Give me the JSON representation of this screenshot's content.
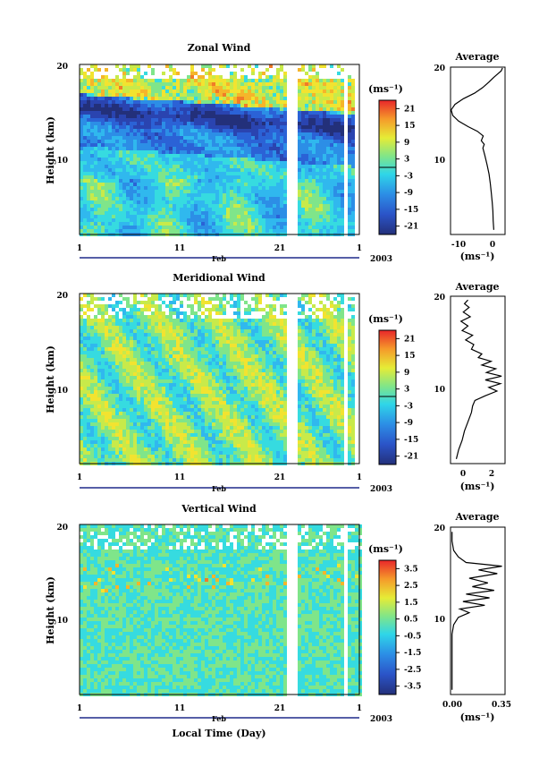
{
  "chart_data": [
    {
      "type": "heatmap",
      "title": "Zonal Wind",
      "ylabel": "Height (km)",
      "yticks": [
        "20",
        "10"
      ],
      "xticks": [
        "1",
        "11",
        "21",
        "1"
      ],
      "month_label": "Feb",
      "year_label": "2003",
      "colorbar_unit": "(ms⁻¹)",
      "colorbar_ticks": [
        "21",
        "15",
        "9",
        "3",
        "-3",
        "-9",
        "-15",
        "-21"
      ],
      "colorbar_range": [
        -24,
        24
      ],
      "average": {
        "title": "Average",
        "yticks": [
          "20",
          "10"
        ],
        "xticks": [
          "-10",
          "0"
        ],
        "unit": "(ms⁻¹)",
        "xlim": [
          -13,
          4
        ],
        "ylim": [
          2,
          20
        ],
        "profile": [
          [
            0.5,
            2.5
          ],
          [
            0.3,
            3.5
          ],
          [
            0.2,
            4.5
          ],
          [
            0.0,
            5.5
          ],
          [
            -0.3,
            6.5
          ],
          [
            -0.6,
            7.5
          ],
          [
            -1.0,
            8.5
          ],
          [
            -1.6,
            9.5
          ],
          [
            -2.3,
            10.5
          ],
          [
            -2.9,
            11.3
          ],
          [
            -2.5,
            11.7
          ],
          [
            -3.4,
            12.1
          ],
          [
            -2.8,
            12.6
          ],
          [
            -4.6,
            13.1
          ],
          [
            -7.5,
            13.6
          ],
          [
            -10.5,
            14.2
          ],
          [
            -12.3,
            14.8
          ],
          [
            -12.8,
            15.4
          ],
          [
            -11.6,
            16.0
          ],
          [
            -9.0,
            16.6
          ],
          [
            -5.5,
            17.2
          ],
          [
            -3.0,
            17.8
          ],
          [
            -1.0,
            18.4
          ],
          [
            0.5,
            18.9
          ],
          [
            1.8,
            19.3
          ],
          [
            2.8,
            19.6
          ],
          [
            3.2,
            19.9
          ]
        ]
      }
    },
    {
      "type": "heatmap",
      "title": "Meridional Wind",
      "ylabel": "Height (km)",
      "yticks": [
        "20",
        "10"
      ],
      "xticks": [
        "1",
        "11",
        "21",
        "1"
      ],
      "month_label": "Feb",
      "year_label": "2003",
      "colorbar_unit": "(ms⁻¹)",
      "colorbar_ticks": [
        "21",
        "15",
        "9",
        "3",
        "-3",
        "-9",
        "-15",
        "-21"
      ],
      "colorbar_range": [
        -24,
        24
      ],
      "average": {
        "title": "Average",
        "yticks": [
          "20",
          "10"
        ],
        "xticks": [
          "0",
          "2"
        ],
        "unit": "(ms⁻¹)",
        "xlim": [
          -1.5,
          3.2
        ],
        "ylim": [
          2,
          20
        ],
        "profile": [
          [
            -1.0,
            2.5
          ],
          [
            -0.8,
            3.5
          ],
          [
            -0.5,
            4.5
          ],
          [
            -0.3,
            5.5
          ],
          [
            0.0,
            6.5
          ],
          [
            0.3,
            7.5
          ],
          [
            0.4,
            8.2
          ],
          [
            0.6,
            8.8
          ],
          [
            1.5,
            9.3
          ],
          [
            2.5,
            9.8
          ],
          [
            1.8,
            10.2
          ],
          [
            2.8,
            10.6
          ],
          [
            1.5,
            11.0
          ],
          [
            2.9,
            11.4
          ],
          [
            1.6,
            11.8
          ],
          [
            2.4,
            12.2
          ],
          [
            1.2,
            12.6
          ],
          [
            2.0,
            13.0
          ],
          [
            0.9,
            13.4
          ],
          [
            1.2,
            13.8
          ],
          [
            0.3,
            14.3
          ],
          [
            0.5,
            14.8
          ],
          [
            -0.2,
            15.3
          ],
          [
            0.4,
            15.8
          ],
          [
            -0.5,
            16.3
          ],
          [
            0.0,
            16.8
          ],
          [
            -0.6,
            17.3
          ],
          [
            0.2,
            17.8
          ],
          [
            -0.4,
            18.3
          ],
          [
            0.1,
            18.8
          ],
          [
            -0.3,
            19.2
          ],
          [
            0.0,
            19.6
          ]
        ]
      }
    },
    {
      "type": "heatmap",
      "title": "Vertical Wind",
      "ylabel": "Height (km)",
      "xlabel": "Local Time (Day)",
      "yticks": [
        "20",
        "10"
      ],
      "xticks": [
        "1",
        "11",
        "21",
        "1"
      ],
      "month_label": "Feb",
      "year_label": "2003",
      "colorbar_unit": "(ms⁻¹)",
      "colorbar_ticks": [
        "3.5",
        "2.5",
        "1.5",
        "0.5",
        "-0.5",
        "-1.5",
        "-2.5",
        "-3.5"
      ],
      "colorbar_range": [
        -4,
        4
      ],
      "average": {
        "title": "Average",
        "yticks": [
          "20",
          "10"
        ],
        "xticks": [
          "0.00",
          "0.35"
        ],
        "unit": "(ms⁻¹)",
        "xlim": [
          0.0,
          0.35
        ],
        "ylim": [
          2,
          20
        ],
        "profile": [
          [
            0.01,
            2.5
          ],
          [
            0.01,
            4.0
          ],
          [
            0.01,
            5.5
          ],
          [
            0.01,
            7.0
          ],
          [
            0.01,
            8.5
          ],
          [
            0.02,
            9.5
          ],
          [
            0.05,
            10.3
          ],
          [
            0.12,
            10.8
          ],
          [
            0.06,
            11.2
          ],
          [
            0.22,
            11.6
          ],
          [
            0.08,
            12.0
          ],
          [
            0.25,
            12.4
          ],
          [
            0.1,
            12.8
          ],
          [
            0.28,
            13.2
          ],
          [
            0.14,
            13.6
          ],
          [
            0.24,
            14.0
          ],
          [
            0.12,
            14.5
          ],
          [
            0.3,
            15.0
          ],
          [
            0.18,
            15.4
          ],
          [
            0.33,
            15.8
          ],
          [
            0.1,
            16.2
          ],
          [
            0.05,
            16.8
          ],
          [
            0.02,
            17.5
          ],
          [
            0.01,
            18.5
          ],
          [
            0.01,
            19.5
          ]
        ]
      }
    }
  ]
}
